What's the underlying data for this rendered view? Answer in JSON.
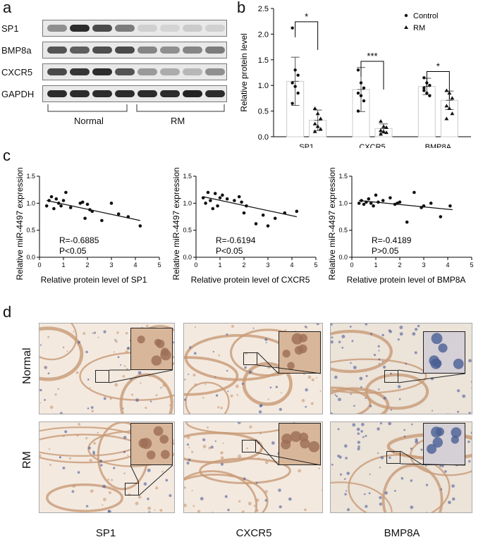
{
  "panel_letters": {
    "a": "a",
    "b": "b",
    "c": "c",
    "d": "d"
  },
  "blot": {
    "rows": [
      "SP1",
      "BMP8a",
      "CXCR5",
      "GAPDH"
    ],
    "groups": [
      "Normal",
      "RM"
    ],
    "band_intensity": [
      [
        0.45,
        0.95,
        0.8,
        0.55,
        0.12,
        0.1,
        0.15,
        0.12
      ],
      [
        0.75,
        0.7,
        0.78,
        0.8,
        0.5,
        0.45,
        0.5,
        0.55
      ],
      [
        0.8,
        0.9,
        0.95,
        0.75,
        0.4,
        0.3,
        0.25,
        0.45
      ],
      [
        0.95,
        0.95,
        0.95,
        0.95,
        0.95,
        0.95,
        1.0,
        0.95
      ]
    ]
  },
  "chart_data": [
    {
      "type": "bar",
      "ylabel": "Relative protein level",
      "ylim": [
        0,
        2.5
      ],
      "yticks": [
        "0.0",
        "0.5",
        "1.0",
        "1.5",
        "2.0",
        "2.5"
      ],
      "categories": [
        "SP1",
        "CXCR5",
        "BMP8A"
      ],
      "legend_position": "top-right",
      "series": [
        {
          "name": "Control",
          "marker": "circle",
          "values": [
            1.08,
            0.92,
            0.98
          ],
          "sd": [
            0.47,
            0.43,
            0.16
          ],
          "points": [
            [
              2.12,
              1.3,
              1.2,
              1.05,
              0.98,
              0.85,
              0.65
            ],
            [
              1.3,
              1.05,
              0.95,
              0.85,
              0.8,
              0.7,
              0.5
            ],
            [
              1.15,
              1.05,
              1.0,
              0.95,
              0.85,
              0.8,
              0.9
            ]
          ]
        },
        {
          "name": "RM",
          "marker": "triangle",
          "values": [
            0.32,
            0.16,
            0.71
          ],
          "sd": [
            0.2,
            0.09,
            0.18
          ],
          "points": [
            [
              0.55,
              0.45,
              0.35,
              0.25,
              0.2,
              0.15,
              0.1
            ],
            [
              0.3,
              0.2,
              0.18,
              0.12,
              0.1,
              0.08,
              0.05
            ],
            [
              0.9,
              0.85,
              0.75,
              0.6,
              0.55,
              0.45,
              0.35
            ]
          ]
        }
      ],
      "significance": [
        "*",
        "***",
        "*"
      ]
    },
    {
      "type": "scatter",
      "xlabel": "Relative protein level of SP1",
      "ylabel": "Relative miR-4497 expression",
      "xlim": [
        0,
        5
      ],
      "ylim": [
        0,
        1.5
      ],
      "xticks": [
        "0",
        "1",
        "2",
        "3",
        "4",
        "5"
      ],
      "yticks": [
        "0.0",
        "0.5",
        "1.0",
        "1.5"
      ],
      "stats": [
        "R=-0.6885",
        "P<0.05"
      ],
      "fit": [
        [
          0.3,
          1.05
        ],
        [
          4.2,
          0.68
        ]
      ],
      "x": [
        0.3,
        0.4,
        0.5,
        0.6,
        0.7,
        0.8,
        0.9,
        1.0,
        1.1,
        1.3,
        1.7,
        1.8,
        1.9,
        2.0,
        2.1,
        2.2,
        2.6,
        3.0,
        3.3,
        3.7,
        4.2
      ],
      "y": [
        0.95,
        1.05,
        1.12,
        0.9,
        1.08,
        1.0,
        0.95,
        1.05,
        1.2,
        0.92,
        1.0,
        1.02,
        0.72,
        0.98,
        0.88,
        0.85,
        0.68,
        1.0,
        0.8,
        0.75,
        0.58
      ]
    },
    {
      "type": "scatter",
      "xlabel": "Relative protein level of CXCR5",
      "ylabel": "Relative miR-4497 expression",
      "xlim": [
        0,
        5
      ],
      "ylim": [
        0,
        1.5
      ],
      "xticks": [
        "0",
        "1",
        "2",
        "3",
        "4",
        "5"
      ],
      "yticks": [
        "0.0",
        "0.5",
        "1.0",
        "1.5"
      ],
      "stats": [
        "R=-0.6194",
        "P<0.05"
      ],
      "fit": [
        [
          0.3,
          1.12
        ],
        [
          4.2,
          0.75
        ]
      ],
      "x": [
        0.3,
        0.4,
        0.5,
        0.6,
        0.7,
        0.8,
        0.9,
        1.0,
        1.1,
        1.3,
        1.6,
        1.8,
        1.9,
        2.0,
        2.1,
        2.5,
        2.8,
        3.0,
        3.3,
        3.7,
        4.2
      ],
      "y": [
        1.1,
        1.0,
        1.2,
        1.05,
        0.9,
        1.18,
        0.95,
        1.1,
        1.15,
        1.08,
        1.05,
        1.12,
        1.02,
        0.82,
        0.95,
        0.62,
        0.78,
        0.58,
        0.72,
        0.82,
        0.85
      ]
    },
    {
      "type": "scatter",
      "xlabel": "Relative protein level of BMP8A",
      "ylabel": "Relative miR-4497 expression",
      "xlim": [
        0,
        5
      ],
      "ylim": [
        0,
        1.5
      ],
      "xticks": [
        "0",
        "1",
        "2",
        "3",
        "4",
        "5"
      ],
      "yticks": [
        "0.0",
        "0.5",
        "1.0",
        "1.5"
      ],
      "stats": [
        "R=-0.4189",
        "P>0.05"
      ],
      "fit": [
        [
          0.3,
          1.05
        ],
        [
          4.2,
          0.88
        ]
      ],
      "x": [
        0.3,
        0.4,
        0.5,
        0.6,
        0.7,
        0.8,
        0.9,
        1.0,
        1.1,
        1.3,
        1.6,
        1.8,
        1.9,
        2.0,
        2.3,
        2.6,
        2.9,
        3.0,
        3.3,
        3.7,
        4.1
      ],
      "y": [
        1.0,
        1.05,
        0.98,
        1.02,
        1.08,
        1.0,
        0.95,
        1.15,
        1.02,
        1.05,
        1.1,
        0.98,
        1.0,
        1.02,
        0.65,
        1.2,
        0.92,
        0.95,
        1.0,
        0.75,
        0.95
      ]
    }
  ],
  "ihc": {
    "row_labels": [
      "Normal",
      "RM"
    ],
    "col_labels": [
      "SP1",
      "CXCR5",
      "BMP8A"
    ]
  },
  "colors": {
    "tissue_brown": "#c89a76",
    "nuclei_blue": "#4f5e9b",
    "bar_fill": "#ffffff",
    "background": "#ffffff"
  }
}
